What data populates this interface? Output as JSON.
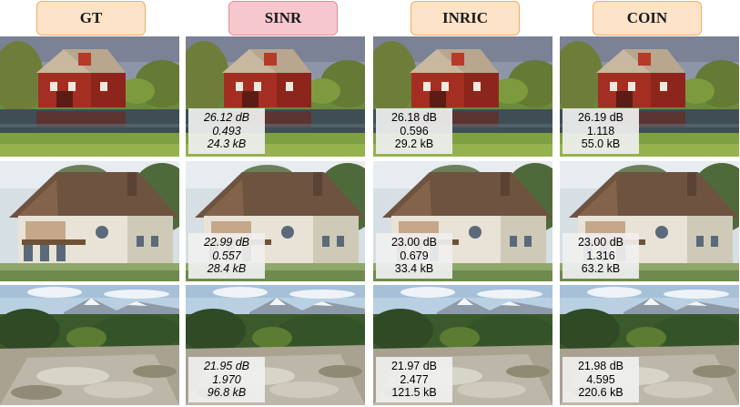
{
  "columns": [
    {
      "label": "GT",
      "style": "orange"
    },
    {
      "label": "SINR",
      "style": "red"
    },
    {
      "label": "INRIC",
      "style": "orange"
    },
    {
      "label": "COIN",
      "style": "orange"
    }
  ],
  "rows": [
    {
      "scene": "red-barn-by-pond",
      "metrics": {
        "SINR": {
          "psnr": "26.12 dB",
          "score": "0.493",
          "size": "24.3 kB"
        },
        "INRIC": {
          "psnr": "26.18 dB",
          "score": "0.596",
          "size": "29.2 kB"
        },
        "COIN": {
          "psnr": "26.19 dB",
          "score": "1.118",
          "size": "55.0 kB"
        }
      }
    },
    {
      "scene": "painted-chalet-house",
      "metrics": {
        "SINR": {
          "psnr": "22.99 dB",
          "score": "0.557",
          "size": "28.4 kB"
        },
        "INRIC": {
          "psnr": "23.00 dB",
          "score": "0.679",
          "size": "33.4 kB"
        },
        "COIN": {
          "psnr": "23.00 dB",
          "score": "1.316",
          "size": "63.2 kB"
        }
      }
    },
    {
      "scene": "mountain-stream",
      "metrics": {
        "SINR": {
          "psnr": "21.95 dB",
          "score": "1.970",
          "size": "96.8 kB"
        },
        "INRIC": {
          "psnr": "21.97 dB",
          "score": "2.477",
          "size": "121.5 kB"
        },
        "COIN": {
          "psnr": "21.98 dB",
          "score": "4.595",
          "size": "220.6 kB"
        }
      }
    }
  ]
}
